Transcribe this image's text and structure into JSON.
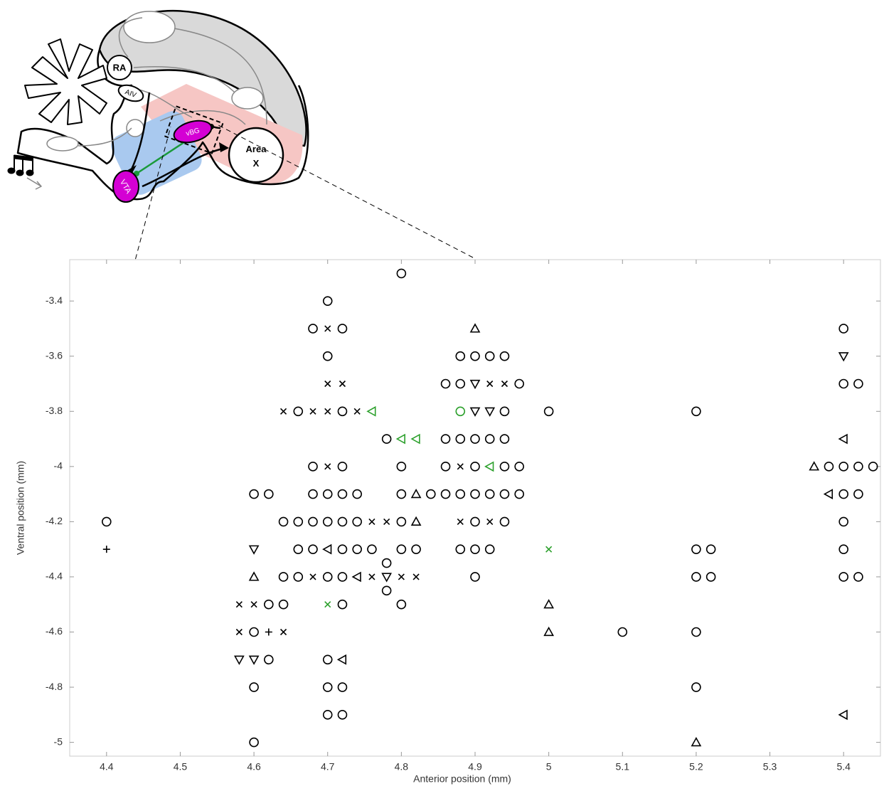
{
  "diagram": {
    "ra": "RA",
    "aiv": "AIV",
    "vbg": "vBG",
    "vta": "VTA",
    "area_x": [
      "Area",
      "X"
    ]
  },
  "chart_data": {
    "type": "scatter",
    "xlabel": "Anterior position (mm)",
    "ylabel": "Ventral position (mm)",
    "xlim": [
      4.35,
      5.45
    ],
    "ylim": [
      -5.05,
      -3.25
    ],
    "xticks": [
      4.4,
      4.5,
      4.6,
      4.7,
      4.8,
      4.9,
      5,
      5.1,
      5.2,
      5.3,
      5.4
    ],
    "yticks": [
      -3.4,
      -3.6,
      -3.8,
      -4,
      -4.2,
      -4.4,
      -4.6,
      -4.8,
      -5
    ],
    "grid": false,
    "series": [
      {
        "marker": "circle",
        "color": "#000000",
        "x": [
          4.8,
          4.7,
          4.68,
          4.72,
          5.4,
          4.7,
          4.88,
          4.9,
          4.92,
          4.94,
          4.86,
          4.88,
          4.96,
          5.4,
          5.42,
          4.66,
          4.72,
          4.94,
          5,
          5.2,
          4.78,
          4.86,
          4.88,
          4.9,
          4.92,
          4.94,
          4.68,
          4.72,
          4.8,
          4.86,
          4.9,
          4.94,
          4.96,
          5.38,
          5.4,
          5.42,
          5.44,
          4.6,
          4.62,
          4.68,
          4.7,
          4.72,
          4.74,
          4.8,
          4.84,
          4.86,
          4.88,
          4.9,
          4.92,
          4.94,
          4.96,
          5.4,
          5.42,
          4.4,
          4.64,
          4.66,
          4.68,
          4.7,
          4.72,
          4.74,
          4.8,
          4.9,
          4.94,
          5.4,
          4.66,
          4.68,
          4.72,
          4.74,
          4.76,
          4.8,
          4.82,
          4.88,
          4.9,
          4.92,
          5.2,
          5.22,
          5.4,
          4.78,
          4.64,
          4.66,
          4.7,
          4.72,
          4.9,
          5.2,
          5.22,
          5.4,
          5.42,
          4.78,
          4.62,
          4.64,
          4.72,
          4.8,
          4.6,
          5.1,
          5.2,
          4.62,
          4.7,
          4.6,
          4.7,
          4.72,
          5.2,
          4.7,
          4.72,
          4.6
        ],
        "y": [
          -3.3,
          -3.4,
          -3.5,
          -3.5,
          -3.5,
          -3.6,
          -3.6,
          -3.6,
          -3.6,
          -3.6,
          -3.7,
          -3.7,
          -3.7,
          -3.7,
          -3.7,
          -3.8,
          -3.8,
          -3.8,
          -3.8,
          -3.8,
          -3.9,
          -3.9,
          -3.9,
          -3.9,
          -3.9,
          -3.9,
          -4,
          -4,
          -4,
          -4,
          -4,
          -4,
          -4,
          -4,
          -4,
          -4,
          -4,
          -4.1,
          -4.1,
          -4.1,
          -4.1,
          -4.1,
          -4.1,
          -4.1,
          -4.1,
          -4.1,
          -4.1,
          -4.1,
          -4.1,
          -4.1,
          -4.1,
          -4.1,
          -4.1,
          -4.2,
          -4.2,
          -4.2,
          -4.2,
          -4.2,
          -4.2,
          -4.2,
          -4.2,
          -4.2,
          -4.2,
          -4.2,
          -4.3,
          -4.3,
          -4.3,
          -4.3,
          -4.3,
          -4.3,
          -4.3,
          -4.3,
          -4.3,
          -4.3,
          -4.3,
          -4.3,
          -4.3,
          -4.35,
          -4.4,
          -4.4,
          -4.4,
          -4.4,
          -4.4,
          -4.4,
          -4.4,
          -4.4,
          -4.4,
          -4.45,
          -4.5,
          -4.5,
          -4.5,
          -4.5,
          -4.6,
          -4.6,
          -4.6,
          -4.7,
          -4.7,
          -4.8,
          -4.8,
          -4.8,
          -4.8,
          -4.9,
          -4.9,
          -5
        ]
      },
      {
        "marker": "x",
        "color": "#000000",
        "x": [
          4.7,
          4.7,
          4.72,
          4.92,
          4.94,
          4.64,
          4.68,
          4.7,
          4.74,
          4.7,
          4.88,
          4.76,
          4.78,
          4.88,
          4.92,
          4.68,
          4.76,
          4.8,
          4.82,
          4.58,
          4.6,
          4.58,
          4.64
        ],
        "y": [
          -3.5,
          -3.7,
          -3.7,
          -3.7,
          -3.7,
          -3.8,
          -3.8,
          -3.8,
          -3.8,
          -4,
          -4,
          -4.2,
          -4.2,
          -4.2,
          -4.2,
          -4.4,
          -4.4,
          -4.4,
          -4.4,
          -4.5,
          -4.5,
          -4.6,
          -4.6
        ]
      },
      {
        "marker": "plus",
        "color": "#000000",
        "x": [
          4.4,
          4.62
        ],
        "y": [
          -4.3,
          -4.6
        ]
      },
      {
        "marker": "triangle-up",
        "color": "#000000",
        "x": [
          4.9,
          5.36,
          4.82,
          4.82,
          4.6,
          5,
          5,
          5.2
        ],
        "y": [
          -3.5,
          -4,
          -4.1,
          -4.2,
          -4.4,
          -4.5,
          -4.6,
          -5
        ]
      },
      {
        "marker": "triangle-down",
        "color": "#000000",
        "x": [
          5.4,
          4.9,
          4.9,
          4.92,
          4.6,
          4.78,
          4.58,
          4.6
        ],
        "y": [
          -3.6,
          -3.7,
          -3.8,
          -3.8,
          -4.3,
          -4.4,
          -4.7,
          -4.7
        ]
      },
      {
        "marker": "triangle-left",
        "color": "#000000",
        "x": [
          5.4,
          5.38,
          4.7,
          4.74,
          4.72,
          5.4
        ],
        "y": [
          -3.9,
          -4.1,
          -4.3,
          -4.4,
          -4.7,
          -4.9
        ]
      },
      {
        "marker": "circle",
        "color": "#2ca02c",
        "x": [
          4.88
        ],
        "y": [
          -3.8
        ]
      },
      {
        "marker": "x",
        "color": "#2ca02c",
        "x": [
          5,
          4.7
        ],
        "y": [
          -4.3,
          -4.5
        ]
      },
      {
        "marker": "triangle-left",
        "color": "#2ca02c",
        "x": [
          4.76,
          4.8,
          4.82,
          4.92
        ],
        "y": [
          -3.8,
          -3.9,
          -3.9,
          -4
        ]
      }
    ]
  }
}
